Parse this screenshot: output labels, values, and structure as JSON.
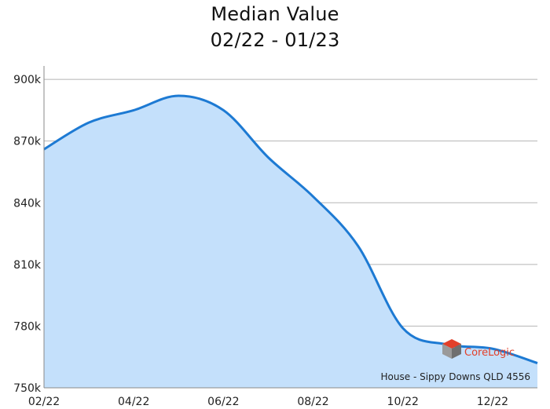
{
  "chart_data": {
    "type": "area",
    "title_lines": [
      "Median Value",
      "02/22 - 01/23"
    ],
    "xlabel": "",
    "ylabel": "",
    "x": [
      "02/22",
      "03/22",
      "04/22",
      "05/22",
      "06/22",
      "07/22",
      "08/22",
      "09/22",
      "10/22",
      "11/22",
      "12/22",
      "01/23"
    ],
    "x_tick_labels": [
      "02/22",
      "04/22",
      "06/22",
      "08/22",
      "10/22",
      "12/22"
    ],
    "y_ticks": [
      750000,
      780000,
      810000,
      840000,
      870000,
      900000
    ],
    "y_tick_labels": [
      "750k",
      "780k",
      "810k",
      "840k",
      "870k",
      "900k"
    ],
    "ylim": [
      750000,
      905000
    ],
    "grid": "horizontal",
    "series": [
      {
        "values": [
          866000,
          879000,
          885000,
          892000,
          885000,
          862000,
          843000,
          819000,
          779000,
          771000,
          769000,
          762000
        ]
      }
    ],
    "annotation": "House - Sippy Downs QLD 4556",
    "watermark_text": "CoreLogic",
    "colors": {
      "line": "#1d7ad3",
      "fill": "#c4e0fb",
      "grid": "#b5b5b5",
      "axis": "#8a8a8a",
      "logo_red": "#e2402a",
      "logo_grey": "#8c8c8c"
    }
  }
}
